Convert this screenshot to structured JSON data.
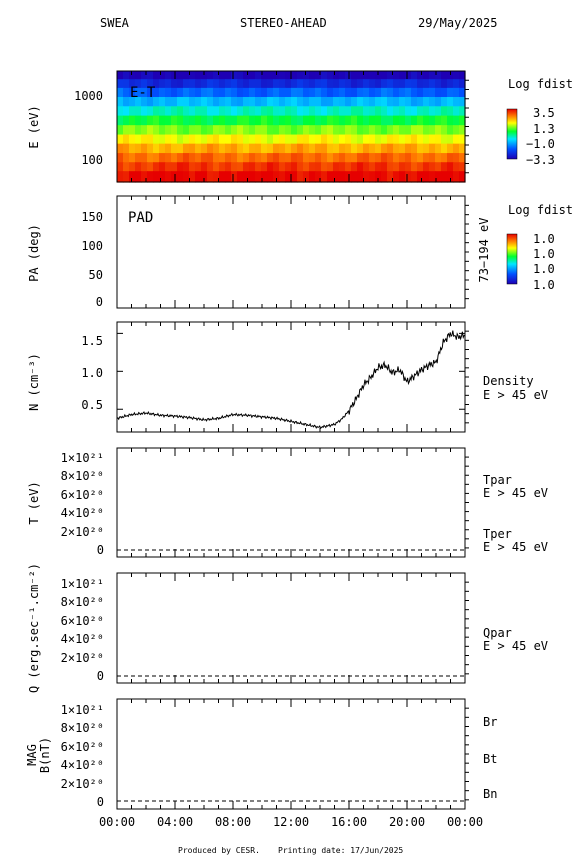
{
  "header": {
    "instrument": "SWEA",
    "spacecraft": "STEREO-AHEAD",
    "date": "29/May/2025"
  },
  "footer": {
    "produced": "Produced by CESR.",
    "printing": "Printing date: 17/Jun/2025"
  },
  "colors": {
    "red": "#ff0000",
    "blue": "#0000ff",
    "black": "#000000"
  },
  "chart_data": [
    {
      "type": "heatmap",
      "panel_label": "E-T",
      "ylabel": "E (eV)",
      "yscale": "log",
      "ylim": [
        50,
        2300
      ],
      "y_ticks": [
        "1000",
        "100"
      ],
      "energy_bands_eV": [
        2000,
        1500,
        1100,
        800,
        580,
        420,
        300,
        220,
        160,
        115,
        85,
        62
      ],
      "band_log_fdist": [
        -3.3,
        -2.6,
        -1.8,
        -1.0,
        -0.3,
        0.4,
        1.0,
        1.6,
        2.2,
        2.7,
        3.1,
        3.5
      ],
      "colorbar": {
        "title": "Log fdist",
        "ticks": [
          "3.5",
          "1.3",
          "−1.0",
          "−3.3"
        ]
      }
    },
    {
      "type": "heatmap",
      "panel_label": "PAD",
      "ylabel": "PA (deg)",
      "ylim": [
        0,
        180
      ],
      "y_ticks": [
        "150",
        "100",
        "50",
        "0"
      ],
      "right_label": "73−194 eV",
      "colorbar": {
        "title": "Log fdist",
        "ticks": [
          "1.0",
          "1.0",
          "1.0",
          "1.0"
        ]
      }
    },
    {
      "type": "line",
      "ylabel": "N (cm⁻³)",
      "ylim": [
        0.2,
        1.65
      ],
      "y_ticks": [
        {
          "v": 1.5,
          "t": "1.5"
        },
        {
          "v": 1.0,
          "t": "1.0"
        },
        {
          "v": 0.5,
          "t": "0.5"
        }
      ],
      "x": [
        0,
        1,
        2,
        3,
        4,
        5,
        6,
        7,
        8,
        9,
        10,
        11,
        12,
        13,
        14,
        15,
        15.5,
        16,
        16.5,
        17,
        17.5,
        18,
        18.5,
        19,
        19.5,
        20,
        20.5,
        21,
        21.5,
        22,
        22.5,
        23,
        23.5,
        24
      ],
      "values": [
        0.38,
        0.43,
        0.45,
        0.42,
        0.41,
        0.39,
        0.36,
        0.38,
        0.43,
        0.42,
        0.4,
        0.38,
        0.34,
        0.3,
        0.26,
        0.3,
        0.37,
        0.48,
        0.64,
        0.82,
        0.92,
        1.05,
        1.08,
        0.98,
        1.02,
        0.86,
        0.94,
        1.02,
        1.08,
        1.12,
        1.38,
        1.5,
        1.45,
        1.48
      ],
      "series": [
        {
          "name": "Density",
          "sub": "E > 45 eV"
        }
      ]
    },
    {
      "type": "line",
      "ylabel": "T (eV)",
      "y_ticks": [
        "1×10²¹",
        "8×10²⁰",
        "6×10²⁰",
        "4×10²⁰",
        "2×10²⁰",
        "0"
      ],
      "values": [
        0
      ],
      "series": [
        {
          "name": "Tpar",
          "sub": "E > 45 eV"
        },
        {
          "name": "Tper",
          "sub": "E > 45 eV"
        }
      ]
    },
    {
      "type": "line",
      "ylabel": "Q (erg.sec⁻¹.cm⁻²)",
      "y_ticks": [
        "1×10²¹",
        "8×10²⁰",
        "6×10²⁰",
        "4×10²⁰",
        "2×10²⁰",
        "0"
      ],
      "values": [
        0
      ],
      "series": [
        {
          "name": "Qpar",
          "sub": "E > 45 eV"
        }
      ]
    },
    {
      "type": "line",
      "ylabel": "MAG",
      "ylabel2": "B(nT)",
      "y_ticks": [
        "1×10²¹",
        "8×10²⁰",
        "6×10²⁰",
        "4×10²⁰",
        "2×10²⁰",
        "0"
      ],
      "values": [
        0
      ],
      "series": [
        {
          "name": "Br"
        },
        {
          "name": "Bt"
        },
        {
          "name": "Bn"
        }
      ],
      "x_ticks": [
        "00:00",
        "04:00",
        "08:00",
        "12:00",
        "16:00",
        "20:00",
        "00:00"
      ]
    }
  ]
}
